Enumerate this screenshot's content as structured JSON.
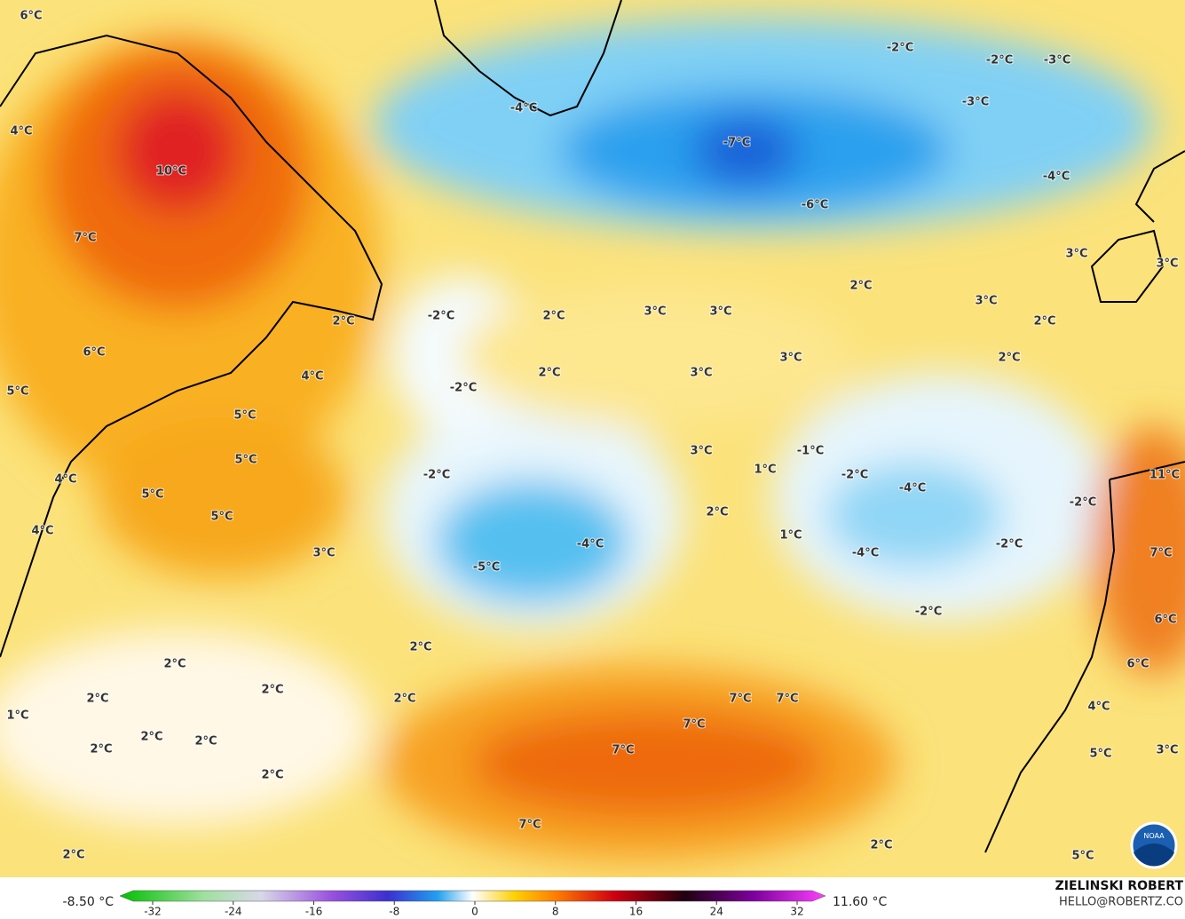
{
  "map": {
    "labels": [
      "6°C",
      "4°C",
      "10°C",
      "7°C",
      "6°C",
      "5°C",
      "4°C",
      "2°C",
      "5°C",
      "5°C",
      "4°C",
      "5°C",
      "5°C",
      "4°C",
      "3°C",
      "-4°C",
      "-7°C",
      "-6°C",
      "-2°C",
      "-2°C",
      "-3°C",
      "-3°C",
      "-4°C",
      "3°C",
      "3°C",
      "2°C",
      "3°C",
      "2°C",
      "2°C",
      "-2°C",
      "2°C",
      "3°C",
      "3°C",
      "2°C",
      "3°C",
      "3°C",
      "-2°C",
      "3°C",
      "1°C",
      "-1°C",
      "-2°C",
      "-4°C",
      "11°C",
      "-2°C",
      "-2°C",
      "2°C",
      "1°C",
      "-4°C",
      "-5°C",
      "-4°C",
      "-2°C",
      "7°C",
      "-2°C",
      "6°C",
      "6°C",
      "2°C",
      "2°C",
      "2°C",
      "2°C",
      "2°C",
      "1°C",
      "7°C",
      "7°C",
      "7°C",
      "2°C",
      "2°C",
      "2°C",
      "7°C",
      "4°C",
      "5°C",
      "3°C",
      "2°C",
      "7°C",
      "2°C",
      "2°C",
      "5°C"
    ]
  },
  "colorbar": {
    "min_label": "-8.50 °C",
    "max_label": "11.60 °C",
    "ticks": [
      -32,
      -24,
      -16,
      -8,
      0,
      8,
      16,
      24,
      32
    ]
  },
  "credit": {
    "name": "ZIELINSKI ROBERT",
    "email": "HELLO@ROBERTZ.CO",
    "logo": "NOAA"
  }
}
